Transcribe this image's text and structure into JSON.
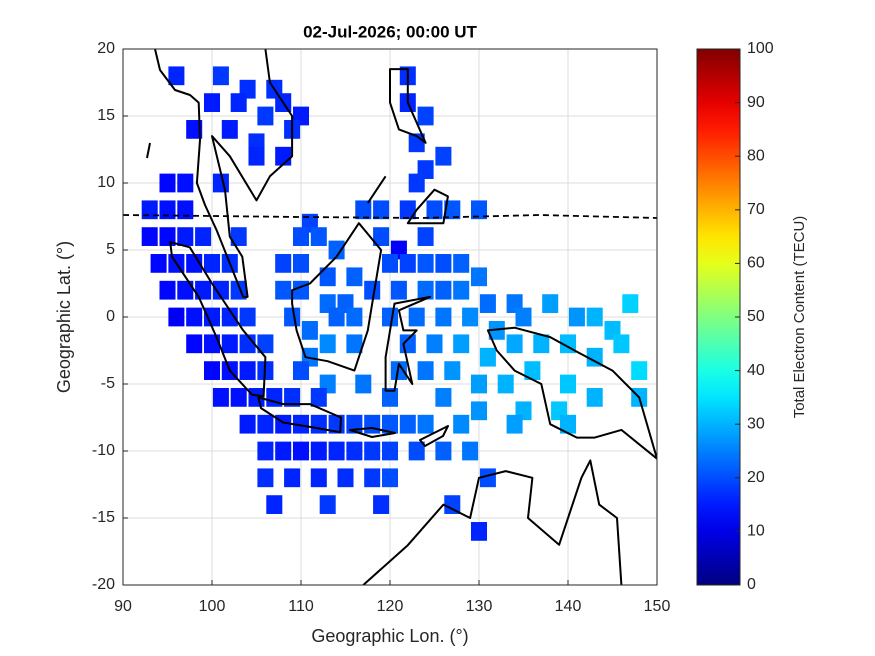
{
  "chart_data": {
    "type": "map",
    "title": "02-Jul-2026; 00:00 UT",
    "xlabel": "Geographic Lon. (°)",
    "ylabel": "Geographic Lat. (°)",
    "xlim": [
      90,
      150
    ],
    "ylim": [
      -20,
      20
    ],
    "xticks": [
      90,
      100,
      110,
      120,
      130,
      140,
      150
    ],
    "yticks": [
      -20,
      -15,
      -10,
      -5,
      0,
      5,
      10,
      15,
      20
    ],
    "grid": true,
    "colorbar": {
      "label": "Total Electron Content (TECU)",
      "lim": [
        0,
        100
      ],
      "ticks": [
        0,
        10,
        20,
        30,
        40,
        50,
        60,
        70,
        80,
        90,
        100
      ],
      "colormap": "jet"
    },
    "tiles": [
      {
        "x": 96,
        "y": 18,
        "value": 16
      },
      {
        "x": 101,
        "y": 18,
        "value": 18
      },
      {
        "x": 104,
        "y": 17,
        "value": 17
      },
      {
        "x": 107,
        "y": 17,
        "value": 17
      },
      {
        "x": 110,
        "y": 15,
        "value": 15
      },
      {
        "x": 122,
        "y": 18,
        "value": 17
      },
      {
        "x": 100,
        "y": 16,
        "value": 15
      },
      {
        "x": 103,
        "y": 16,
        "value": 16
      },
      {
        "x": 106,
        "y": 15,
        "value": 18
      },
      {
        "x": 108,
        "y": 16,
        "value": 16
      },
      {
        "x": 122,
        "y": 16,
        "value": 16
      },
      {
        "x": 124,
        "y": 15,
        "value": 19
      },
      {
        "x": 98,
        "y": 14,
        "value": 14
      },
      {
        "x": 102,
        "y": 14,
        "value": 15
      },
      {
        "x": 105,
        "y": 13,
        "value": 17
      },
      {
        "x": 109,
        "y": 14,
        "value": 17
      },
      {
        "x": 123,
        "y": 13,
        "value": 18
      },
      {
        "x": 105,
        "y": 12,
        "value": 16
      },
      {
        "x": 108,
        "y": 12,
        "value": 15
      },
      {
        "x": 124,
        "y": 11,
        "value": 18
      },
      {
        "x": 126,
        "y": 12,
        "value": 19
      },
      {
        "x": 95,
        "y": 10,
        "value": 13
      },
      {
        "x": 97,
        "y": 10,
        "value": 14
      },
      {
        "x": 101,
        "y": 10,
        "value": 16
      },
      {
        "x": 123,
        "y": 10,
        "value": 18
      },
      {
        "x": 93,
        "y": 8,
        "value": 15
      },
      {
        "x": 95,
        "y": 8,
        "value": 14
      },
      {
        "x": 97,
        "y": 8,
        "value": 14
      },
      {
        "x": 111,
        "y": 7,
        "value": 19
      },
      {
        "x": 117,
        "y": 8,
        "value": 20
      },
      {
        "x": 119,
        "y": 8,
        "value": 20
      },
      {
        "x": 122,
        "y": 8,
        "value": 18
      },
      {
        "x": 125,
        "y": 8,
        "value": 20
      },
      {
        "x": 127,
        "y": 8,
        "value": 21
      },
      {
        "x": 130,
        "y": 8,
        "value": 21
      },
      {
        "x": 93,
        "y": 6,
        "value": 13
      },
      {
        "x": 95,
        "y": 6,
        "value": 13
      },
      {
        "x": 97,
        "y": 6,
        "value": 15
      },
      {
        "x": 99,
        "y": 6,
        "value": 16
      },
      {
        "x": 103,
        "y": 6,
        "value": 18
      },
      {
        "x": 110,
        "y": 6,
        "value": 20
      },
      {
        "x": 112,
        "y": 6,
        "value": 21
      },
      {
        "x": 114,
        "y": 5,
        "value": 22
      },
      {
        "x": 119,
        "y": 6,
        "value": 20
      },
      {
        "x": 121,
        "y": 5,
        "value": 12
      },
      {
        "x": 124,
        "y": 6,
        "value": 19
      },
      {
        "x": 94,
        "y": 4,
        "value": 13
      },
      {
        "x": 96,
        "y": 4,
        "value": 14
      },
      {
        "x": 98,
        "y": 4,
        "value": 14
      },
      {
        "x": 100,
        "y": 4,
        "value": 16
      },
      {
        "x": 102,
        "y": 4,
        "value": 17
      },
      {
        "x": 108,
        "y": 4,
        "value": 19
      },
      {
        "x": 110,
        "y": 4,
        "value": 20
      },
      {
        "x": 113,
        "y": 3,
        "value": 21
      },
      {
        "x": 116,
        "y": 3,
        "value": 22
      },
      {
        "x": 120,
        "y": 4,
        "value": 20
      },
      {
        "x": 122,
        "y": 4,
        "value": 19
      },
      {
        "x": 124,
        "y": 4,
        "value": 21
      },
      {
        "x": 126,
        "y": 4,
        "value": 20
      },
      {
        "x": 128,
        "y": 4,
        "value": 22
      },
      {
        "x": 130,
        "y": 3,
        "value": 24
      },
      {
        "x": 95,
        "y": 2,
        "value": 13
      },
      {
        "x": 97,
        "y": 2,
        "value": 14
      },
      {
        "x": 99,
        "y": 2,
        "value": 15
      },
      {
        "x": 101,
        "y": 2,
        "value": 16
      },
      {
        "x": 103,
        "y": 2,
        "value": 18
      },
      {
        "x": 108,
        "y": 2,
        "value": 21
      },
      {
        "x": 110,
        "y": 2,
        "value": 21
      },
      {
        "x": 113,
        "y": 1,
        "value": 23
      },
      {
        "x": 115,
        "y": 1,
        "value": 22
      },
      {
        "x": 118,
        "y": 2,
        "value": 20
      },
      {
        "x": 121,
        "y": 2,
        "value": 21
      },
      {
        "x": 124,
        "y": 2,
        "value": 23
      },
      {
        "x": 126,
        "y": 2,
        "value": 22
      },
      {
        "x": 128,
        "y": 2,
        "value": 24
      },
      {
        "x": 131,
        "y": 1,
        "value": 23
      },
      {
        "x": 134,
        "y": 1,
        "value": 24
      },
      {
        "x": 96,
        "y": 0,
        "value": 12
      },
      {
        "x": 98,
        "y": 0,
        "value": 14
      },
      {
        "x": 100,
        "y": 0,
        "value": 15
      },
      {
        "x": 102,
        "y": 0,
        "value": 16
      },
      {
        "x": 104,
        "y": 0,
        "value": 18
      },
      {
        "x": 109,
        "y": 0,
        "value": 21
      },
      {
        "x": 111,
        "y": -1,
        "value": 23
      },
      {
        "x": 114,
        "y": 0,
        "value": 22
      },
      {
        "x": 116,
        "y": 0,
        "value": 23
      },
      {
        "x": 120,
        "y": 0,
        "value": 22
      },
      {
        "x": 123,
        "y": 0,
        "value": 23
      },
      {
        "x": 126,
        "y": 0,
        "value": 24
      },
      {
        "x": 129,
        "y": 0,
        "value": 26
      },
      {
        "x": 132,
        "y": -1,
        "value": 27
      },
      {
        "x": 135,
        "y": 0,
        "value": 25
      },
      {
        "x": 138,
        "y": 1,
        "value": 28
      },
      {
        "x": 141,
        "y": 0,
        "value": 27
      },
      {
        "x": 143,
        "y": 0,
        "value": 30
      },
      {
        "x": 145,
        "y": -1,
        "value": 31
      },
      {
        "x": 147,
        "y": 1,
        "value": 33
      },
      {
        "x": 98,
        "y": -2,
        "value": 13
      },
      {
        "x": 100,
        "y": -2,
        "value": 14
      },
      {
        "x": 102,
        "y": -2,
        "value": 15
      },
      {
        "x": 104,
        "y": -2,
        "value": 17
      },
      {
        "x": 106,
        "y": -2,
        "value": 19
      },
      {
        "x": 111,
        "y": -3,
        "value": 24
      },
      {
        "x": 113,
        "y": -2,
        "value": 26
      },
      {
        "x": 116,
        "y": -2,
        "value": 24
      },
      {
        "x": 122,
        "y": -2,
        "value": 22
      },
      {
        "x": 125,
        "y": -2,
        "value": 25
      },
      {
        "x": 128,
        "y": -2,
        "value": 28
      },
      {
        "x": 131,
        "y": -3,
        "value": 30
      },
      {
        "x": 134,
        "y": -2,
        "value": 29
      },
      {
        "x": 137,
        "y": -2,
        "value": 30
      },
      {
        "x": 140,
        "y": -2,
        "value": 31
      },
      {
        "x": 143,
        "y": -3,
        "value": 30
      },
      {
        "x": 146,
        "y": -2,
        "value": 32
      },
      {
        "x": 100,
        "y": -4,
        "value": 13
      },
      {
        "x": 102,
        "y": -4,
        "value": 14
      },
      {
        "x": 104,
        "y": -4,
        "value": 15
      },
      {
        "x": 106,
        "y": -4,
        "value": 17
      },
      {
        "x": 110,
        "y": -4,
        "value": 20
      },
      {
        "x": 113,
        "y": -5,
        "value": 25
      },
      {
        "x": 117,
        "y": -5,
        "value": 24
      },
      {
        "x": 121,
        "y": -4,
        "value": 23
      },
      {
        "x": 124,
        "y": -4,
        "value": 24
      },
      {
        "x": 127,
        "y": -4,
        "value": 27
      },
      {
        "x": 130,
        "y": -5,
        "value": 28
      },
      {
        "x": 133,
        "y": -5,
        "value": 30
      },
      {
        "x": 136,
        "y": -4,
        "value": 31
      },
      {
        "x": 140,
        "y": -5,
        "value": 32
      },
      {
        "x": 148,
        "y": -4,
        "value": 34
      },
      {
        "x": 101,
        "y": -6,
        "value": 14
      },
      {
        "x": 103,
        "y": -6,
        "value": 14
      },
      {
        "x": 105,
        "y": -6,
        "value": 15
      },
      {
        "x": 107,
        "y": -6,
        "value": 16
      },
      {
        "x": 109,
        "y": -6,
        "value": 17
      },
      {
        "x": 112,
        "y": -6,
        "value": 18
      },
      {
        "x": 120,
        "y": -6,
        "value": 22
      },
      {
        "x": 126,
        "y": -6,
        "value": 25
      },
      {
        "x": 130,
        "y": -7,
        "value": 27
      },
      {
        "x": 135,
        "y": -7,
        "value": 30
      },
      {
        "x": 139,
        "y": -7,
        "value": 32
      },
      {
        "x": 143,
        "y": -6,
        "value": 30
      },
      {
        "x": 148,
        "y": -6,
        "value": 30
      },
      {
        "x": 104,
        "y": -8,
        "value": 15
      },
      {
        "x": 106,
        "y": -8,
        "value": 16
      },
      {
        "x": 108,
        "y": -8,
        "value": 15
      },
      {
        "x": 110,
        "y": -8,
        "value": 16
      },
      {
        "x": 112,
        "y": -8,
        "value": 17
      },
      {
        "x": 114,
        "y": -8,
        "value": 18
      },
      {
        "x": 116,
        "y": -8,
        "value": 19
      },
      {
        "x": 118,
        "y": -8,
        "value": 20
      },
      {
        "x": 120,
        "y": -8,
        "value": 21
      },
      {
        "x": 122,
        "y": -8,
        "value": 22
      },
      {
        "x": 124,
        "y": -8,
        "value": 24
      },
      {
        "x": 128,
        "y": -8,
        "value": 26
      },
      {
        "x": 134,
        "y": -8,
        "value": 28
      },
      {
        "x": 140,
        "y": -8,
        "value": 30
      },
      {
        "x": 106,
        "y": -10,
        "value": 16
      },
      {
        "x": 108,
        "y": -10,
        "value": 15
      },
      {
        "x": 110,
        "y": -10,
        "value": 14
      },
      {
        "x": 112,
        "y": -10,
        "value": 15
      },
      {
        "x": 114,
        "y": -10,
        "value": 16
      },
      {
        "x": 116,
        "y": -10,
        "value": 17
      },
      {
        "x": 118,
        "y": -10,
        "value": 18
      },
      {
        "x": 120,
        "y": -10,
        "value": 19
      },
      {
        "x": 123,
        "y": -10,
        "value": 20
      },
      {
        "x": 126,
        "y": -10,
        "value": 22
      },
      {
        "x": 129,
        "y": -10,
        "value": 24
      },
      {
        "x": 106,
        "y": -12,
        "value": 17
      },
      {
        "x": 109,
        "y": -12,
        "value": 16
      },
      {
        "x": 112,
        "y": -12,
        "value": 16
      },
      {
        "x": 115,
        "y": -12,
        "value": 17
      },
      {
        "x": 118,
        "y": -12,
        "value": 18
      },
      {
        "x": 120,
        "y": -12,
        "value": 20
      },
      {
        "x": 131,
        "y": -12,
        "value": 20
      },
      {
        "x": 107,
        "y": -14,
        "value": 16
      },
      {
        "x": 113,
        "y": -14,
        "value": 18
      },
      {
        "x": 119,
        "y": -14,
        "value": 17
      },
      {
        "x": 127,
        "y": -14,
        "value": 19
      },
      {
        "x": 130,
        "y": -16,
        "value": 16
      }
    ]
  }
}
